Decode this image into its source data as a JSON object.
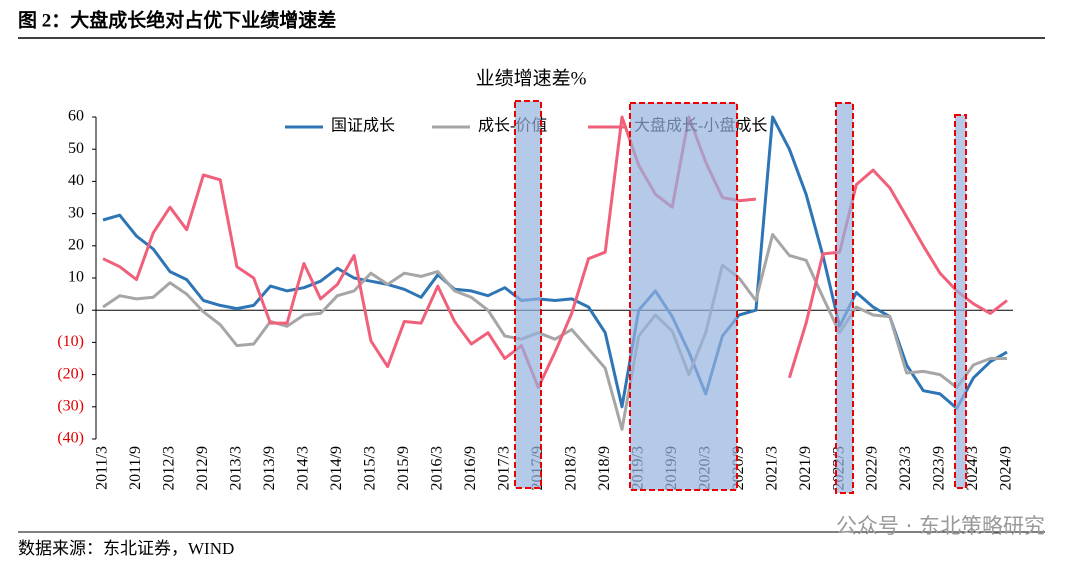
{
  "header": {
    "title": "图 2：大盘成长绝对占优下业绩增速差"
  },
  "source": "数据来源：东北证券，WIND",
  "watermark": "公众号 · 东北策略研究",
  "chart_data": {
    "type": "line",
    "title": "业绩增速差%",
    "categories": [
      "2011/3",
      null,
      "2011/9",
      null,
      "2012/3",
      null,
      "2012/9",
      null,
      "2013/3",
      null,
      "2013/9",
      null,
      "2014/3",
      null,
      "2014/9",
      null,
      "2015/3",
      null,
      "2015/9",
      null,
      "2016/3",
      null,
      "2016/9",
      null,
      "2017/3",
      null,
      "2017/9",
      null,
      "2018/3",
      null,
      "2018/9",
      null,
      "2019/3",
      null,
      "2019/9",
      null,
      "2020/3",
      null,
      "2020/9",
      null,
      "2021/3",
      null,
      "2021/9",
      null,
      "2022/3",
      null,
      "2022/9",
      null,
      "2023/3",
      null,
      "2023/9",
      null,
      "2024/3",
      null,
      "2024/9"
    ],
    "series": [
      {
        "name": "国证成长",
        "color": "#2e75b6",
        "values": [
          28,
          29.5,
          23,
          19,
          12,
          9.5,
          3,
          1.5,
          0.5,
          1.5,
          7.5,
          6,
          7,
          9,
          13,
          10,
          9,
          8,
          6.5,
          4,
          11,
          6.5,
          6,
          4.5,
          7,
          3,
          3.5,
          3,
          3.5,
          1,
          -7,
          -30,
          0,
          6,
          -2,
          -13,
          -26,
          -8,
          -1.5,
          0,
          60,
          50,
          36,
          17,
          -5,
          5.5,
          1,
          -2,
          -17,
          -25,
          -26,
          -30.5,
          -21,
          -16,
          -13
        ]
      },
      {
        "name": "成长-价值",
        "color": "#a6a6a6",
        "values": [
          1,
          4.5,
          3.5,
          4,
          8.5,
          5,
          -0.5,
          -4.5,
          -11,
          -10.5,
          -3.5,
          -5,
          -1.5,
          -1,
          4.5,
          6,
          11.5,
          8,
          11.5,
          10.5,
          12,
          6,
          4,
          0,
          -8,
          -9,
          -7,
          -9,
          -6,
          -12,
          -18,
          -37,
          -8,
          -1.5,
          -6.5,
          -20,
          -7,
          14,
          10,
          3,
          23.5,
          17,
          15.5,
          4,
          -7,
          1,
          -1.5,
          -2,
          -19.5,
          -19,
          -20,
          -24,
          -17,
          -15,
          -15
        ]
      },
      {
        "name": "大盘成长-小盘成长",
        "color": "#f0607a",
        "values": [
          16,
          13.5,
          9.5,
          24,
          32,
          25,
          42,
          40.5,
          13.5,
          10,
          -4,
          -4,
          14.5,
          3.5,
          8,
          17,
          -9.5,
          -17.5,
          -3.5,
          -4,
          7.5,
          -3.5,
          -10.5,
          -7,
          -15,
          -11,
          -24,
          -13,
          -1,
          16,
          18,
          60,
          45,
          36,
          32,
          60,
          46,
          35,
          34,
          34.5,
          null,
          -21,
          -4,
          17.5,
          18,
          39,
          43.5,
          38,
          29,
          20,
          11.5,
          6,
          2,
          -1,
          3
        ]
      }
    ],
    "ylim": [
      -40,
      60
    ],
    "yticks": [
      60,
      50,
      40,
      30,
      20,
      10,
      0,
      {
        "value": -10,
        "label": "(10)"
      },
      {
        "value": -20,
        "label": "(20)"
      },
      {
        "value": -30,
        "label": "(30)"
      },
      {
        "value": -40,
        "label": "(40)"
      }
    ],
    "negative_label_color": "#e00000",
    "legend": "top"
  }
}
